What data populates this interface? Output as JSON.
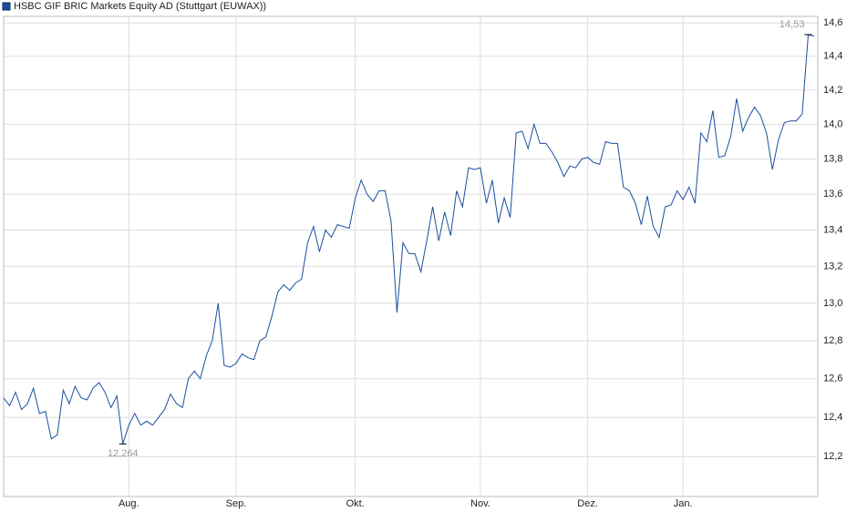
{
  "chart_data": {
    "type": "line",
    "series": [
      {
        "name": "HSBC GIF BRIC Markets Equity AD (Stuttgart (EUWAX))",
        "color": "#1a4fa0",
        "values": [
          12.5,
          12.46,
          12.53,
          12.44,
          12.47,
          12.55,
          12.42,
          12.43,
          12.29,
          12.31,
          12.54,
          12.47,
          12.56,
          12.5,
          12.49,
          12.55,
          12.58,
          12.53,
          12.45,
          12.51,
          12.264,
          12.36,
          12.42,
          12.36,
          12.38,
          12.36,
          12.4,
          12.44,
          12.52,
          12.47,
          12.45,
          12.6,
          12.64,
          12.6,
          12.72,
          12.8,
          13.0,
          12.67,
          12.66,
          12.68,
          12.73,
          12.71,
          12.7,
          12.8,
          12.82,
          12.93,
          13.06,
          13.1,
          13.07,
          13.11,
          13.13,
          13.33,
          13.42,
          13.28,
          13.4,
          13.36,
          13.43,
          13.42,
          13.41,
          13.58,
          13.68,
          13.6,
          13.56,
          13.62,
          13.62,
          13.45,
          12.95,
          13.33,
          13.27,
          13.27,
          13.17,
          13.34,
          13.53,
          13.34,
          13.5,
          13.37,
          13.62,
          13.53,
          13.75,
          13.74,
          13.75,
          13.55,
          13.68,
          13.44,
          13.58,
          13.47,
          13.95,
          13.96,
          13.86,
          14.0,
          13.89,
          13.89,
          13.84,
          13.78,
          13.7,
          13.76,
          13.75,
          13.8,
          13.81,
          13.78,
          13.77,
          13.9,
          13.89,
          13.89,
          13.64,
          13.62,
          13.55,
          13.43,
          13.59,
          13.42,
          13.36,
          13.53,
          13.54,
          13.62,
          13.57,
          13.64,
          13.55,
          13.95,
          13.9,
          14.08,
          13.81,
          13.82,
          13.93,
          14.15,
          13.96,
          14.04,
          14.1,
          14.05,
          13.95,
          13.74,
          13.91,
          14.01,
          14.02,
          14.02,
          14.06,
          14.53,
          14.52
        ]
      }
    ],
    "categories": [
      null,
      null,
      null,
      null,
      null,
      null,
      null,
      null,
      null,
      null,
      null,
      null,
      null,
      null,
      null,
      null,
      null,
      null,
      null,
      null,
      null,
      "Aug.",
      null,
      null,
      null,
      null,
      null,
      null,
      null,
      null,
      null,
      null,
      null,
      null,
      null,
      null,
      null,
      null,
      null,
      "Sep.",
      null,
      null,
      null,
      null,
      null,
      null,
      null,
      null,
      null,
      null,
      null,
      null,
      null,
      null,
      null,
      null,
      null,
      null,
      null,
      "Okt.",
      null,
      null,
      null,
      null,
      null,
      null,
      null,
      null,
      null,
      null,
      null,
      null,
      null,
      null,
      null,
      null,
      null,
      null,
      null,
      null,
      "Nov.",
      null,
      null,
      null,
      null,
      null,
      null,
      null,
      null,
      null,
      null,
      null,
      null,
      null,
      null,
      null,
      null,
      null,
      "Dez.",
      null,
      null,
      null,
      null,
      null,
      null,
      null,
      null,
      null,
      null,
      null,
      null,
      null,
      null,
      null,
      "Jan.",
      null,
      null,
      null,
      null,
      null,
      null,
      null,
      null,
      null,
      null,
      null,
      null,
      null,
      null,
      null,
      null,
      null,
      null,
      null,
      null,
      null,
      null
    ],
    "max_label": "14,53",
    "min_label": "12,264",
    "log_scale": true,
    "grid": true,
    "ylim": [
      12.0,
      14.64
    ],
    "yticks": [
      {
        "value": 12.2,
        "label": "12,2"
      },
      {
        "value": 12.4,
        "label": "12,4"
      },
      {
        "value": 12.6,
        "label": "12,6"
      },
      {
        "value": 12.8,
        "label": "12,8"
      },
      {
        "value": 13.0,
        "label": "13,0"
      },
      {
        "value": 13.2,
        "label": "13,2"
      },
      {
        "value": 13.4,
        "label": "13,4"
      },
      {
        "value": 13.6,
        "label": "13,6"
      },
      {
        "value": 13.8,
        "label": "13,8"
      },
      {
        "value": 14.0,
        "label": "14,0"
      },
      {
        "value": 14.2,
        "label": "14,2"
      },
      {
        "value": 14.4,
        "label": "14,4"
      },
      {
        "value": 14.6,
        "label": "14,6"
      }
    ]
  }
}
